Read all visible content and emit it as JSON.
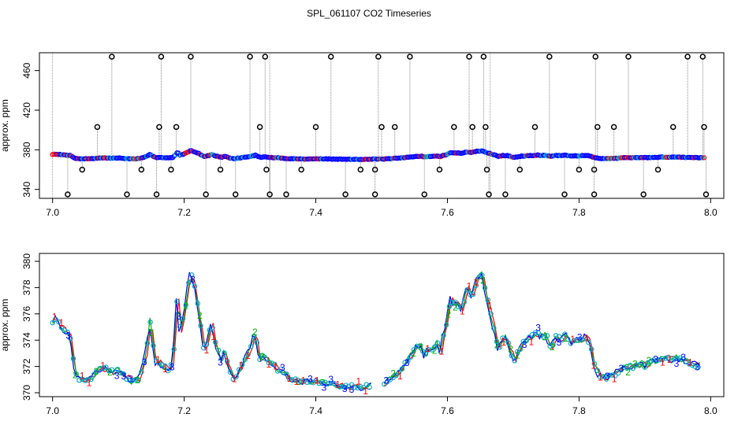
{
  "title": "SPL_061107  CO2 Timeseries",
  "chart_data": [
    {
      "type": "scatter",
      "name": "raw",
      "title": "SPL_061107  CO2 Timeseries",
      "xlabel": "",
      "ylabel": "approx. ppm",
      "xlim": [
        6.98,
        8.02
      ],
      "ylim": [
        331,
        478
      ],
      "xticks": [
        7.0,
        7.2,
        7.4,
        7.6,
        7.8,
        8.0
      ],
      "xticklabels": [
        "7.0",
        "7.2",
        "7.4",
        "7.6",
        "7.8",
        "8.0"
      ],
      "yticks": [
        340,
        380,
        420,
        460
      ],
      "yticklabels": [
        "340",
        "380",
        "420",
        "460"
      ],
      "series_colors": [
        "#0000ff",
        "#00b0c0",
        "#ff0000"
      ],
      "spike_color": "#000000",
      "gap_lines_x": [
        7.0,
        7.33,
        7.665
      ],
      "outliers": [
        {
          "x": 7.023,
          "y": 335
        },
        {
          "x": 7.045,
          "y": 360
        },
        {
          "x": 7.068,
          "y": 403
        },
        {
          "x": 7.09,
          "y": 474
        },
        {
          "x": 7.113,
          "y": 335
        },
        {
          "x": 7.135,
          "y": 360
        },
        {
          "x": 7.158,
          "y": 335
        },
        {
          "x": 7.162,
          "y": 403
        },
        {
          "x": 7.165,
          "y": 474
        },
        {
          "x": 7.18,
          "y": 360
        },
        {
          "x": 7.188,
          "y": 403
        },
        {
          "x": 7.21,
          "y": 474
        },
        {
          "x": 7.233,
          "y": 335
        },
        {
          "x": 7.255,
          "y": 360
        },
        {
          "x": 7.278,
          "y": 335
        },
        {
          "x": 7.3,
          "y": 474
        },
        {
          "x": 7.315,
          "y": 403
        },
        {
          "x": 7.323,
          "y": 474
        },
        {
          "x": 7.325,
          "y": 360
        },
        {
          "x": 7.33,
          "y": 335
        },
        {
          "x": 7.355,
          "y": 335
        },
        {
          "x": 7.378,
          "y": 360
        },
        {
          "x": 7.4,
          "y": 403
        },
        {
          "x": 7.423,
          "y": 474
        },
        {
          "x": 7.445,
          "y": 335
        },
        {
          "x": 7.468,
          "y": 360
        },
        {
          "x": 7.49,
          "y": 335
        },
        {
          "x": 7.495,
          "y": 474
        },
        {
          "x": 7.49,
          "y": 360
        },
        {
          "x": 7.5,
          "y": 403
        },
        {
          "x": 7.52,
          "y": 403
        },
        {
          "x": 7.543,
          "y": 474
        },
        {
          "x": 7.565,
          "y": 335
        },
        {
          "x": 7.588,
          "y": 360
        },
        {
          "x": 7.61,
          "y": 403
        },
        {
          "x": 7.633,
          "y": 474
        },
        {
          "x": 7.638,
          "y": 403
        },
        {
          "x": 7.655,
          "y": 474
        },
        {
          "x": 7.658,
          "y": 403
        },
        {
          "x": 7.66,
          "y": 360
        },
        {
          "x": 7.663,
          "y": 335
        },
        {
          "x": 7.688,
          "y": 335
        },
        {
          "x": 7.71,
          "y": 360
        },
        {
          "x": 7.733,
          "y": 403
        },
        {
          "x": 7.755,
          "y": 474
        },
        {
          "x": 7.778,
          "y": 335
        },
        {
          "x": 7.8,
          "y": 360
        },
        {
          "x": 7.823,
          "y": 335
        },
        {
          "x": 7.823,
          "y": 360
        },
        {
          "x": 7.825,
          "y": 474
        },
        {
          "x": 7.828,
          "y": 403
        },
        {
          "x": 7.853,
          "y": 403
        },
        {
          "x": 7.875,
          "y": 474
        },
        {
          "x": 7.898,
          "y": 335
        },
        {
          "x": 7.92,
          "y": 360
        },
        {
          "x": 7.943,
          "y": 403
        },
        {
          "x": 7.965,
          "y": 474
        },
        {
          "x": 7.988,
          "y": 474
        },
        {
          "x": 7.99,
          "y": 403
        },
        {
          "x": 7.993,
          "y": 335
        }
      ],
      "baseline_source": "same CO2 series as lower panel"
    },
    {
      "type": "line",
      "name": "detail",
      "xlabel": "",
      "ylabel": "approx. ppm",
      "xlim": [
        6.98,
        8.02
      ],
      "ylim": [
        369.7,
        380.6
      ],
      "xticks": [
        7.0,
        7.2,
        7.4,
        7.6,
        7.8,
        8.0
      ],
      "xticklabels": [
        "7.0",
        "7.2",
        "7.4",
        "7.6",
        "7.8",
        "8.0"
      ],
      "yticks": [
        370,
        372,
        374,
        376,
        378,
        380
      ],
      "yticklabels": [
        "370",
        "372",
        "374",
        "376",
        "378",
        "380"
      ],
      "knots": [
        [
          7.0,
          375.4
        ],
        [
          7.005,
          375.7
        ],
        [
          7.012,
          375.1
        ],
        [
          7.02,
          374.7
        ],
        [
          7.027,
          374.3
        ],
        [
          7.03,
          373.4
        ],
        [
          7.033,
          371.9
        ],
        [
          7.037,
          371.1
        ],
        [
          7.042,
          371.0
        ],
        [
          7.05,
          370.9
        ],
        [
          7.06,
          371.2
        ],
        [
          7.07,
          371.7
        ],
        [
          7.08,
          371.8
        ],
        [
          7.09,
          371.6
        ],
        [
          7.1,
          371.7
        ],
        [
          7.11,
          371.3
        ],
        [
          7.12,
          370.9
        ],
        [
          7.13,
          371.0
        ],
        [
          7.137,
          371.8
        ],
        [
          7.143,
          373.2
        ],
        [
          7.148,
          375.6
        ],
        [
          7.152,
          374.0
        ],
        [
          7.157,
          372.2
        ],
        [
          7.163,
          372.3
        ],
        [
          7.17,
          371.9
        ],
        [
          7.177,
          371.8
        ],
        [
          7.183,
          372.3
        ],
        [
          7.187,
          375.3
        ],
        [
          7.19,
          377.5
        ],
        [
          7.194,
          374.5
        ],
        [
          7.2,
          376.0
        ],
        [
          7.205,
          377.6
        ],
        [
          7.209,
          379.2
        ],
        [
          7.213,
          378.6
        ],
        [
          7.218,
          377.6
        ],
        [
          7.224,
          375.6
        ],
        [
          7.23,
          373.3
        ],
        [
          7.235,
          373.6
        ],
        [
          7.241,
          375.4
        ],
        [
          7.247,
          374.0
        ],
        [
          7.255,
          372.5
        ],
        [
          7.262,
          373.2
        ],
        [
          7.268,
          371.9
        ],
        [
          7.275,
          371.1
        ],
        [
          7.283,
          371.6
        ],
        [
          7.29,
          372.3
        ],
        [
          7.3,
          373.3
        ],
        [
          7.308,
          374.5
        ],
        [
          7.315,
          372.5
        ],
        [
          7.322,
          372.8
        ],
        [
          7.33,
          372.3
        ],
        [
          7.34,
          371.9
        ],
        [
          7.35,
          371.5
        ],
        [
          7.36,
          371.1
        ],
        [
          7.37,
          370.9
        ],
        [
          7.38,
          370.8
        ],
        [
          7.39,
          370.8
        ],
        [
          7.4,
          370.9
        ],
        [
          7.41,
          370.8
        ],
        [
          7.42,
          370.7
        ],
        [
          7.43,
          370.6
        ],
        [
          7.44,
          370.5
        ],
        [
          7.45,
          370.4
        ],
        [
          7.46,
          370.5
        ],
        [
          7.47,
          370.4
        ],
        [
          7.48,
          370.5
        ],
        [
          7.49,
          370.6
        ],
        [
          7.5,
          370.7
        ],
        [
          7.51,
          370.9
        ],
        [
          7.52,
          371.3
        ],
        [
          7.53,
          371.7
        ],
        [
          7.54,
          372.5
        ],
        [
          7.55,
          373.2
        ],
        [
          7.56,
          373.7
        ],
        [
          7.565,
          372.7
        ],
        [
          7.57,
          373.3
        ],
        [
          7.578,
          373.3
        ],
        [
          7.585,
          373.8
        ],
        [
          7.59,
          373.0
        ],
        [
          7.595,
          374.6
        ],
        [
          7.6,
          375.5
        ],
        [
          7.605,
          377.3
        ],
        [
          7.61,
          376.7
        ],
        [
          7.615,
          376.8
        ],
        [
          7.622,
          376.3
        ],
        [
          7.63,
          378.0
        ],
        [
          7.638,
          377.3
        ],
        [
          7.645,
          378.6
        ],
        [
          7.653,
          379.0
        ],
        [
          7.657,
          377.9
        ],
        [
          7.662,
          376.8
        ],
        [
          7.668,
          375.4
        ],
        [
          7.673,
          374.6
        ],
        [
          7.678,
          373.1
        ],
        [
          7.683,
          374.1
        ],
        [
          7.69,
          374.2
        ],
        [
          7.697,
          373.0
        ],
        [
          7.703,
          372.5
        ],
        [
          7.71,
          373.4
        ],
        [
          7.716,
          373.8
        ],
        [
          7.722,
          374.2
        ],
        [
          7.73,
          374.3
        ],
        [
          7.737,
          374.6
        ],
        [
          7.743,
          374.2
        ],
        [
          7.75,
          374.4
        ],
        [
          7.757,
          373.4
        ],
        [
          7.765,
          374.3
        ],
        [
          7.772,
          374.0
        ],
        [
          7.78,
          374.5
        ],
        [
          7.788,
          373.7
        ],
        [
          7.795,
          374.0
        ],
        [
          7.803,
          374.0
        ],
        [
          7.81,
          374.3
        ],
        [
          7.817,
          373.7
        ],
        [
          7.822,
          372.3
        ],
        [
          7.83,
          371.4
        ],
        [
          7.84,
          371.2
        ],
        [
          7.85,
          371.3
        ],
        [
          7.86,
          371.6
        ],
        [
          7.87,
          371.9
        ],
        [
          7.88,
          372.0
        ],
        [
          7.89,
          372.1
        ],
        [
          7.9,
          372.1
        ],
        [
          7.91,
          372.3
        ],
        [
          7.92,
          372.4
        ],
        [
          7.93,
          372.7
        ],
        [
          7.94,
          372.5
        ],
        [
          7.95,
          372.7
        ],
        [
          7.96,
          372.4
        ],
        [
          7.97,
          372.3
        ],
        [
          7.98,
          372.1
        ],
        [
          7.985,
          372.1
        ]
      ],
      "gap": [
        7.486,
        7.5
      ],
      "series": [
        {
          "name": "1",
          "color": "#ff0000",
          "label": "1"
        },
        {
          "name": "2",
          "color": "#00b000",
          "label": "2"
        },
        {
          "name": "3",
          "color": "#0000ff",
          "label": "3"
        },
        {
          "name": "o",
          "color": "#00a8c8",
          "label": "o"
        }
      ]
    }
  ]
}
